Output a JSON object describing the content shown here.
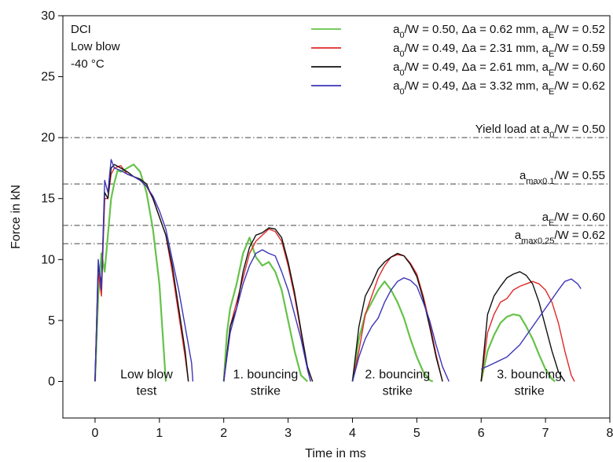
{
  "chart_data": {
    "type": "line",
    "title": "",
    "xlabel": "Time in ms",
    "ylabel": "Force in kN",
    "xlim": [
      -0.5,
      8
    ],
    "ylim": [
      -3,
      30
    ],
    "xticks": [
      0,
      1,
      2,
      3,
      4,
      5,
      6,
      7,
      8
    ],
    "yticks": [
      0,
      5,
      10,
      15,
      20,
      25,
      30
    ],
    "grid": false,
    "legend_position": "top-right",
    "info_lines": [
      "DCI",
      "Low blow",
      "-40 °C"
    ],
    "series": [
      {
        "name": "a0/W = 0.50, Δa = 0.62 mm, aE/W = 0.52",
        "color": "#66c24a",
        "x": [
          0.0,
          0.05,
          0.1,
          0.15,
          0.2,
          0.25,
          0.3,
          0.35,
          0.4,
          0.5,
          0.6,
          0.7,
          0.8,
          0.9,
          1.0,
          1.05,
          1.1,
          2.0,
          2.05,
          2.1,
          2.2,
          2.3,
          2.4,
          2.5,
          2.6,
          2.7,
          2.8,
          2.9,
          3.0,
          3.1,
          3.2,
          3.3,
          4.0,
          4.1,
          4.2,
          4.3,
          4.4,
          4.5,
          4.6,
          4.7,
          4.8,
          4.9,
          5.0,
          5.1,
          5.2,
          5.25,
          6.0,
          6.1,
          6.2,
          6.3,
          6.4,
          6.5,
          6.6,
          6.7,
          6.8,
          6.9,
          7.0,
          7.1,
          7.15
        ],
        "y": [
          0,
          7,
          10.5,
          9,
          12,
          15,
          16.3,
          17.3,
          17.2,
          17.5,
          17.8,
          17.2,
          15.5,
          12.5,
          8,
          4,
          0,
          0,
          4,
          6,
          8,
          10.5,
          11.8,
          10.2,
          9.5,
          9.8,
          9.0,
          7.5,
          5.0,
          2.5,
          0.5,
          0,
          0,
          3.5,
          5.5,
          6.5,
          7.5,
          8.2,
          7.5,
          6.5,
          5.2,
          3.5,
          2.0,
          0.8,
          0.1,
          0,
          0,
          2.5,
          3.8,
          4.8,
          5.3,
          5.5,
          5.4,
          4.5,
          3.5,
          2.2,
          1.0,
          0.2,
          0
        ]
      },
      {
        "name": "a0/W = 0.49, Δa = 2.31 mm, aE/W = 0.59",
        "color": "#e02828",
        "x": [
          0.0,
          0.05,
          0.1,
          0.15,
          0.2,
          0.25,
          0.3,
          0.4,
          0.5,
          0.6,
          0.7,
          0.8,
          0.9,
          1.0,
          1.1,
          1.2,
          1.3,
          1.4,
          1.45,
          2.0,
          2.1,
          2.2,
          2.3,
          2.4,
          2.5,
          2.6,
          2.7,
          2.8,
          2.9,
          3.0,
          3.1,
          3.2,
          3.3,
          3.35,
          4.0,
          4.1,
          4.2,
          4.3,
          4.4,
          4.5,
          4.6,
          4.7,
          4.8,
          4.9,
          5.0,
          5.1,
          5.2,
          5.3,
          5.4,
          6.0,
          6.1,
          6.2,
          6.3,
          6.4,
          6.5,
          6.6,
          6.7,
          6.8,
          6.9,
          7.0,
          7.1,
          7.2,
          7.3,
          7.4,
          7.45
        ],
        "y": [
          0,
          9,
          7,
          15,
          15,
          17,
          17.5,
          17.7,
          17.0,
          16.8,
          16.5,
          16.0,
          15.0,
          13.5,
          12.0,
          9.0,
          5.5,
          2.0,
          0,
          0,
          4.5,
          6.5,
          8.5,
          10.5,
          11.5,
          12.0,
          12.5,
          12.3,
          11.5,
          9.5,
          7.0,
          4.0,
          1.0,
          0,
          0,
          2.5,
          5.5,
          7.0,
          8.5,
          9.5,
          10.2,
          10.4,
          10.3,
          9.7,
          8.8,
          7.0,
          4.8,
          2.2,
          0,
          0,
          4.0,
          5.5,
          6.5,
          6.8,
          7.5,
          7.8,
          8.0,
          8.2,
          8.0,
          7.5,
          6.5,
          4.8,
          2.5,
          0.5,
          0
        ]
      },
      {
        "name": "a0/W = 0.49, Δa = 2.61 mm, aE/W = 0.60",
        "color": "#111111",
        "x": [
          0.0,
          0.05,
          0.1,
          0.15,
          0.2,
          0.25,
          0.3,
          0.4,
          0.5,
          0.6,
          0.7,
          0.8,
          0.9,
          1.0,
          1.1,
          1.2,
          1.3,
          1.4,
          1.45,
          2.0,
          2.1,
          2.2,
          2.3,
          2.4,
          2.5,
          2.6,
          2.7,
          2.8,
          2.9,
          3.0,
          3.1,
          3.2,
          3.3,
          3.38,
          4.0,
          4.1,
          4.2,
          4.3,
          4.4,
          4.5,
          4.6,
          4.7,
          4.8,
          4.9,
          5.0,
          5.1,
          5.2,
          5.3,
          5.4,
          6.0,
          6.1,
          6.2,
          6.3,
          6.4,
          6.5,
          6.6,
          6.7,
          6.8,
          6.9,
          7.0,
          7.1,
          7.2,
          7.3
        ],
        "y": [
          0,
          9.5,
          8,
          15.5,
          15,
          17.5,
          17.8,
          17.5,
          17.2,
          16.8,
          16.6,
          16.2,
          15.0,
          13.5,
          12.0,
          9.5,
          6.0,
          2.5,
          0,
          0,
          4.5,
          6.0,
          9.0,
          11.0,
          12.0,
          12.2,
          12.6,
          12.5,
          11.8,
          9.8,
          7.3,
          4.2,
          1.2,
          0,
          0,
          4.5,
          7.0,
          8.0,
          9.2,
          9.8,
          10.2,
          10.5,
          10.3,
          9.6,
          8.6,
          6.8,
          4.5,
          2.0,
          0,
          0,
          5.5,
          7.0,
          7.8,
          8.5,
          8.8,
          9.0,
          8.7,
          8.0,
          6.5,
          4.5,
          2.5,
          0.8,
          0
        ]
      },
      {
        "name": "a0/W = 0.49, Δa = 3.32 mm, aE/W = 0.62",
        "color": "#3c34b8",
        "x": [
          0.0,
          0.05,
          0.1,
          0.15,
          0.2,
          0.25,
          0.3,
          0.4,
          0.5,
          0.6,
          0.7,
          0.8,
          0.9,
          1.0,
          1.1,
          1.2,
          1.3,
          1.4,
          1.5,
          1.52,
          2.0,
          2.1,
          2.2,
          2.3,
          2.4,
          2.5,
          2.6,
          2.7,
          2.8,
          2.9,
          3.0,
          3.1,
          3.2,
          3.3,
          3.35,
          4.0,
          4.1,
          4.2,
          4.3,
          4.4,
          4.5,
          4.6,
          4.7,
          4.8,
          4.9,
          5.0,
          5.1,
          5.2,
          5.3,
          5.4,
          5.5,
          6.0,
          6.2,
          6.4,
          6.6,
          6.8,
          7.0,
          7.2,
          7.3,
          7.4,
          7.5,
          7.55
        ],
        "y": [
          0,
          10,
          7.5,
          16.5,
          15.5,
          18.2,
          17.5,
          17.3,
          17.0,
          16.8,
          16.5,
          16.0,
          15.2,
          14.0,
          12.5,
          10.0,
          7.5,
          4.5,
          1.5,
          0,
          0,
          4.0,
          6.0,
          8.0,
          9.5,
          10.5,
          10.8,
          10.5,
          10.3,
          9.0,
          7.5,
          5.5,
          3.5,
          1.0,
          0,
          0,
          2.0,
          3.5,
          4.5,
          5.2,
          6.5,
          7.5,
          8.2,
          8.5,
          8.3,
          7.8,
          6.5,
          5.0,
          3.0,
          1.2,
          0,
          1.0,
          1.5,
          2.0,
          3.0,
          4.5,
          6.0,
          7.5,
          8.2,
          8.4,
          8.0,
          7.6
        ]
      }
    ],
    "reference_lines": [
      {
        "value": 20.0,
        "label": "Yield load at a0/W = 0.50"
      },
      {
        "value": 16.2,
        "label": "amax0.1/W = 0.55"
      },
      {
        "value": 12.8,
        "label": "aE/W = 0.60"
      },
      {
        "value": 11.3,
        "label": "amax0.25/W = 0.62"
      }
    ],
    "annotations": [
      {
        "x": 0.8,
        "lines": [
          "Low blow",
          "test"
        ]
      },
      {
        "x": 2.65,
        "lines": [
          "1. bouncing",
          "strike"
        ]
      },
      {
        "x": 4.7,
        "lines": [
          "2. bouncing",
          "strike"
        ]
      },
      {
        "x": 6.75,
        "lines": [
          "3. bouncing",
          "strike"
        ]
      }
    ]
  }
}
